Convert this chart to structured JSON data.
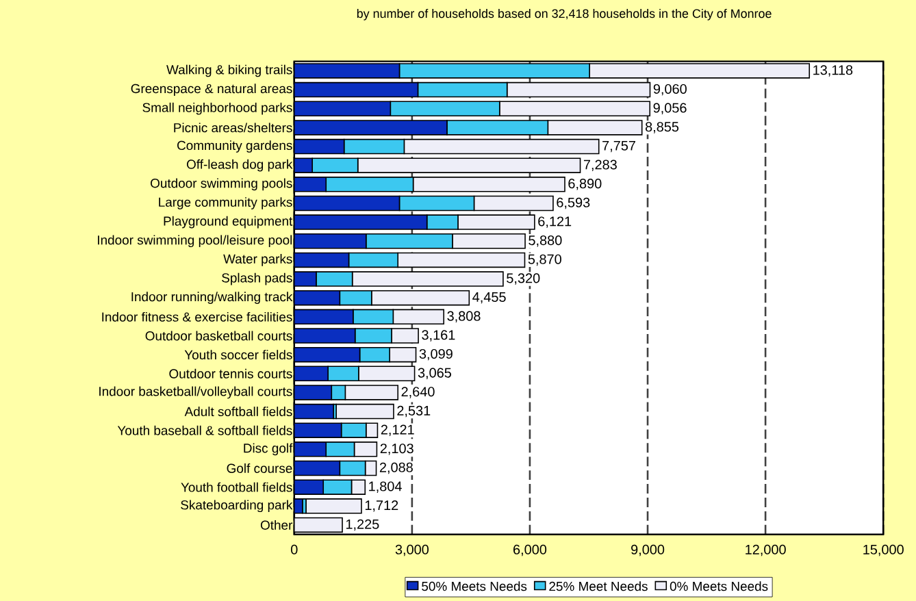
{
  "chart_data": {
    "type": "bar",
    "orientation": "horizontal",
    "stacked": true,
    "title": "by number of households based on 32,418 households in the City of Monroe",
    "categories": [
      "Walking & biking trails",
      "Greenspace & natural areas",
      "Small neighborhood parks",
      "Picnic areas/shelters",
      "Community gardens",
      "Off-leash dog park",
      "Outdoor swimming pools",
      "Large community parks",
      "Playground equipment",
      "Indoor swimming pool/leisure pool",
      "Water parks",
      "Splash pads",
      "Indoor running/walking track",
      "Indoor fitness & exercise facilities",
      "Outdoor basketball courts",
      "Youth soccer fields",
      "Outdoor tennis courts",
      "Indoor basketball/volleyball courts",
      "Adult softball fields",
      "Youth baseball & softball fields",
      "Disc golf",
      "Golf course",
      "Youth football fields",
      "Skateboarding park",
      "Other"
    ],
    "series": [
      {
        "name": "50% Meets Needs",
        "color": "#0a2fc0",
        "values": [
          2680,
          3150,
          2450,
          3890,
          1270,
          460,
          810,
          2680,
          3380,
          1830,
          1390,
          560,
          1160,
          1500,
          1550,
          1670,
          860,
          950,
          1000,
          1200,
          810,
          1160,
          740,
          210,
          0
        ]
      },
      {
        "name": "25% Meet Needs",
        "color": "#3cc8f0",
        "values": [
          4840,
          2270,
          2780,
          2570,
          1530,
          1160,
          2220,
          1900,
          790,
          2200,
          1250,
          920,
          810,
          1020,
          930,
          760,
          780,
          350,
          70,
          630,
          720,
          650,
          720,
          90,
          0
        ]
      },
      {
        "name": "0% Meets Needs",
        "color": "#eeeef8",
        "values": [
          5598,
          3640,
          3826,
          2395,
          4957,
          5663,
          3860,
          2013,
          1951,
          1850,
          3230,
          3840,
          2485,
          1288,
          681,
          669,
          1425,
          1340,
          1461,
          291,
          573,
          278,
          344,
          1412,
          1225
        ]
      }
    ],
    "totals": [
      "13,118",
      "9,060",
      "9,056",
      "8,855",
      "7,757",
      "7,283",
      "6,890",
      "6,593",
      "6,121",
      "5,880",
      "5,870",
      "5,320",
      "4,455",
      "3,808",
      "3,161",
      "3,099",
      "3,065",
      "2,640",
      "2,531",
      "2,121",
      "2,103",
      "2,088",
      "1,804",
      "1,712",
      "1,225"
    ],
    "xlim": [
      0,
      15000
    ],
    "xticks": [
      0,
      {
        "value": 3000,
        "label": "3,000"
      },
      {
        "value": 6000,
        "label": "6,000"
      },
      {
        "value": 9000,
        "label": "9,000"
      },
      {
        "value": 12000,
        "label": "12,000"
      },
      {
        "value": 15000,
        "label": "15,000"
      }
    ],
    "grid": "x",
    "legend": "bottom"
  }
}
